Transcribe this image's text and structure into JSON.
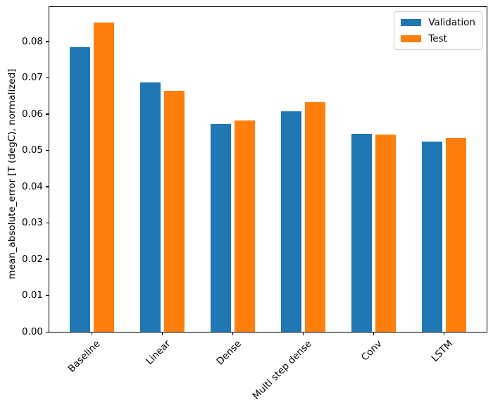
{
  "figure": {
    "background": "#ffffff",
    "spine_color": "#000000"
  },
  "chart_data": {
    "type": "bar",
    "title": "",
    "xlabel": "",
    "ylabel": "mean_absolute_error [T (degC), normalized]",
    "categories": [
      "Baseline",
      "Linear",
      "Dense",
      "Multi step dense",
      "Conv",
      "LSTM"
    ],
    "series": [
      {
        "name": "Validation",
        "color": "#1f77b4",
        "values": [
          0.0785,
          0.0687,
          0.0572,
          0.0607,
          0.0545,
          0.0524
        ]
      },
      {
        "name": "Test",
        "color": "#ff7f0e",
        "values": [
          0.0852,
          0.0664,
          0.0583,
          0.0633,
          0.0543,
          0.0533
        ]
      }
    ],
    "ylim": [
      0,
      0.0895
    ],
    "xlim": [
      -0.602,
      5.602
    ],
    "yticks": [
      0,
      0.01,
      0.02,
      0.03,
      0.04,
      0.05,
      0.06,
      0.07,
      0.08
    ],
    "ytick_decimals": 2,
    "xtick_rotation_deg": 45,
    "bar_width": 0.29,
    "bar_offset": 0.17,
    "grid": false,
    "legend": {
      "position": "upper right",
      "entries": [
        "Validation",
        "Test"
      ]
    }
  }
}
